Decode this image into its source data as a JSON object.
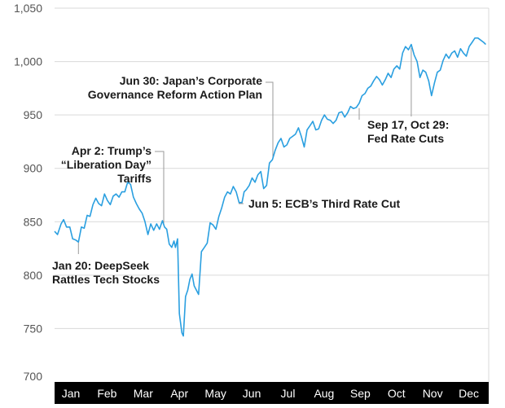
{
  "chart_data": {
    "type": "line",
    "title": "",
    "xlabel": "",
    "ylabel": "",
    "ylim": [
      700,
      1050
    ],
    "yticks": [
      700,
      750,
      800,
      850,
      900,
      950,
      1000,
      1050
    ],
    "ytick_labels": [
      "700",
      "750",
      "800",
      "850",
      "900",
      "950",
      "1,000",
      "1,050"
    ],
    "grid": "horizontal",
    "months": [
      "Jan",
      "Feb",
      "Mar",
      "Apr",
      "May",
      "Jun",
      "Jul",
      "Aug",
      "Sep",
      "Oct",
      "Nov",
      "Dec"
    ],
    "month_bar_color": "#000000",
    "line_color": "#2a9fe0",
    "series": [
      {
        "values": [
          [
            0.0,
            841
          ],
          [
            0.08,
            838
          ],
          [
            0.18,
            848
          ],
          [
            0.25,
            852
          ],
          [
            0.33,
            845
          ],
          [
            0.42,
            845
          ],
          [
            0.5,
            834
          ],
          [
            0.58,
            833
          ],
          [
            0.66,
            831
          ],
          [
            0.74,
            845
          ],
          [
            0.82,
            844
          ],
          [
            0.9,
            856
          ],
          [
            0.98,
            855
          ],
          [
            1.06,
            866
          ],
          [
            1.14,
            872
          ],
          [
            1.22,
            867
          ],
          [
            1.3,
            865
          ],
          [
            1.38,
            876
          ],
          [
            1.46,
            870
          ],
          [
            1.54,
            866
          ],
          [
            1.62,
            874
          ],
          [
            1.7,
            876
          ],
          [
            1.78,
            873
          ],
          [
            1.86,
            878
          ],
          [
            1.94,
            878
          ],
          [
            2.02,
            887
          ],
          [
            2.1,
            885
          ],
          [
            2.18,
            873
          ],
          [
            2.26,
            867
          ],
          [
            2.34,
            862
          ],
          [
            2.42,
            858
          ],
          [
            2.5,
            850
          ],
          [
            2.58,
            838
          ],
          [
            2.66,
            848
          ],
          [
            2.74,
            842
          ],
          [
            2.82,
            848
          ],
          [
            2.9,
            843
          ],
          [
            2.98,
            851
          ],
          [
            3.04,
            845
          ],
          [
            3.1,
            843
          ],
          [
            3.17,
            829
          ],
          [
            3.24,
            826
          ],
          [
            3.3,
            832
          ],
          [
            3.34,
            826
          ],
          [
            3.4,
            834
          ],
          [
            3.45,
            764
          ],
          [
            3.52,
            746
          ],
          [
            3.56,
            743
          ],
          [
            3.62,
            780
          ],
          [
            3.68,
            786
          ],
          [
            3.74,
            796
          ],
          [
            3.8,
            801
          ],
          [
            3.86,
            790
          ],
          [
            3.92,
            786
          ],
          [
            3.98,
            782
          ],
          [
            4.06,
            822
          ],
          [
            4.14,
            826
          ],
          [
            4.22,
            830
          ],
          [
            4.3,
            849
          ],
          [
            4.38,
            847
          ],
          [
            4.46,
            843
          ],
          [
            4.54,
            855
          ],
          [
            4.62,
            863
          ],
          [
            4.7,
            873
          ],
          [
            4.78,
            878
          ],
          [
            4.86,
            876
          ],
          [
            4.94,
            883
          ],
          [
            5.02,
            878
          ],
          [
            5.1,
            868
          ],
          [
            5.18,
            868
          ],
          [
            5.24,
            878
          ],
          [
            5.3,
            880
          ],
          [
            5.38,
            884
          ],
          [
            5.46,
            891
          ],
          [
            5.54,
            887
          ],
          [
            5.62,
            894
          ],
          [
            5.7,
            897
          ],
          [
            5.78,
            881
          ],
          [
            5.86,
            884
          ],
          [
            5.94,
            905
          ],
          [
            6.02,
            908
          ],
          [
            6.1,
            917
          ],
          [
            6.18,
            924
          ],
          [
            6.26,
            928
          ],
          [
            6.34,
            920
          ],
          [
            6.42,
            922
          ],
          [
            6.5,
            928
          ],
          [
            6.58,
            930
          ],
          [
            6.66,
            932
          ],
          [
            6.74,
            938
          ],
          [
            6.82,
            930
          ],
          [
            6.9,
            920
          ],
          [
            6.98,
            936
          ],
          [
            7.06,
            940
          ],
          [
            7.14,
            944
          ],
          [
            7.22,
            936
          ],
          [
            7.3,
            937
          ],
          [
            7.38,
            945
          ],
          [
            7.46,
            950
          ],
          [
            7.54,
            946
          ],
          [
            7.62,
            945
          ],
          [
            7.7,
            942
          ],
          [
            7.78,
            945
          ],
          [
            7.86,
            952
          ],
          [
            7.94,
            953
          ],
          [
            8.02,
            948
          ],
          [
            8.1,
            952
          ],
          [
            8.18,
            958
          ],
          [
            8.26,
            956
          ],
          [
            8.34,
            957
          ],
          [
            8.42,
            961
          ],
          [
            8.5,
            968
          ],
          [
            8.58,
            970
          ],
          [
            8.66,
            975
          ],
          [
            8.74,
            977
          ],
          [
            8.82,
            982
          ],
          [
            8.9,
            986
          ],
          [
            8.98,
            983
          ],
          [
            9.06,
            978
          ],
          [
            9.14,
            983
          ],
          [
            9.22,
            989
          ],
          [
            9.3,
            985
          ],
          [
            9.38,
            993
          ],
          [
            9.46,
            996
          ],
          [
            9.54,
            993
          ],
          [
            9.62,
            1008
          ],
          [
            9.7,
            1014
          ],
          [
            9.78,
            1011
          ],
          [
            9.86,
            1016
          ],
          [
            9.94,
            1006
          ],
          [
            10.02,
            1000
          ],
          [
            10.1,
            985
          ],
          [
            10.18,
            992
          ],
          [
            10.26,
            990
          ],
          [
            10.34,
            982
          ],
          [
            10.42,
            968
          ],
          [
            10.5,
            980
          ],
          [
            10.58,
            990
          ],
          [
            10.66,
            992
          ],
          [
            10.74,
            1001
          ],
          [
            10.82,
            1007
          ],
          [
            10.9,
            1003
          ],
          [
            10.98,
            1008
          ],
          [
            11.06,
            1010
          ],
          [
            11.14,
            1004
          ],
          [
            11.22,
            1012
          ],
          [
            11.3,
            1008
          ],
          [
            11.38,
            1005
          ],
          [
            11.46,
            1014
          ],
          [
            11.54,
            1018
          ],
          [
            11.62,
            1022
          ],
          [
            11.7,
            1022
          ],
          [
            11.78,
            1020
          ],
          [
            11.86,
            1018
          ],
          [
            11.92,
            1016
          ]
        ]
      }
    ],
    "annotations": [
      {
        "lines": [
          "Jan 20: DeepSeek",
          "Rattles Tech Stocks"
        ],
        "x": 0.66,
        "y": 831
      },
      {
        "lines": [
          "Apr 2: Trump’s",
          "“Liberation Day”",
          "Tariffs"
        ],
        "x": 3.04,
        "y": 845
      },
      {
        "lines": [
          "Jun 5: ECB’s Third Rate Cut"
        ],
        "x": 5.1,
        "y": 868
      },
      {
        "lines": [
          "Jun 30: Japan’s Corporate",
          "Governance Reform Action Plan"
        ],
        "x": 5.94,
        "y": 905
      },
      {
        "lines": [
          "Sep 17, Oct 29:",
          "Fed Rate Cuts"
        ],
        "x": 8.42,
        "y": 961,
        "x2": 9.86,
        "y2": 1016
      }
    ]
  }
}
